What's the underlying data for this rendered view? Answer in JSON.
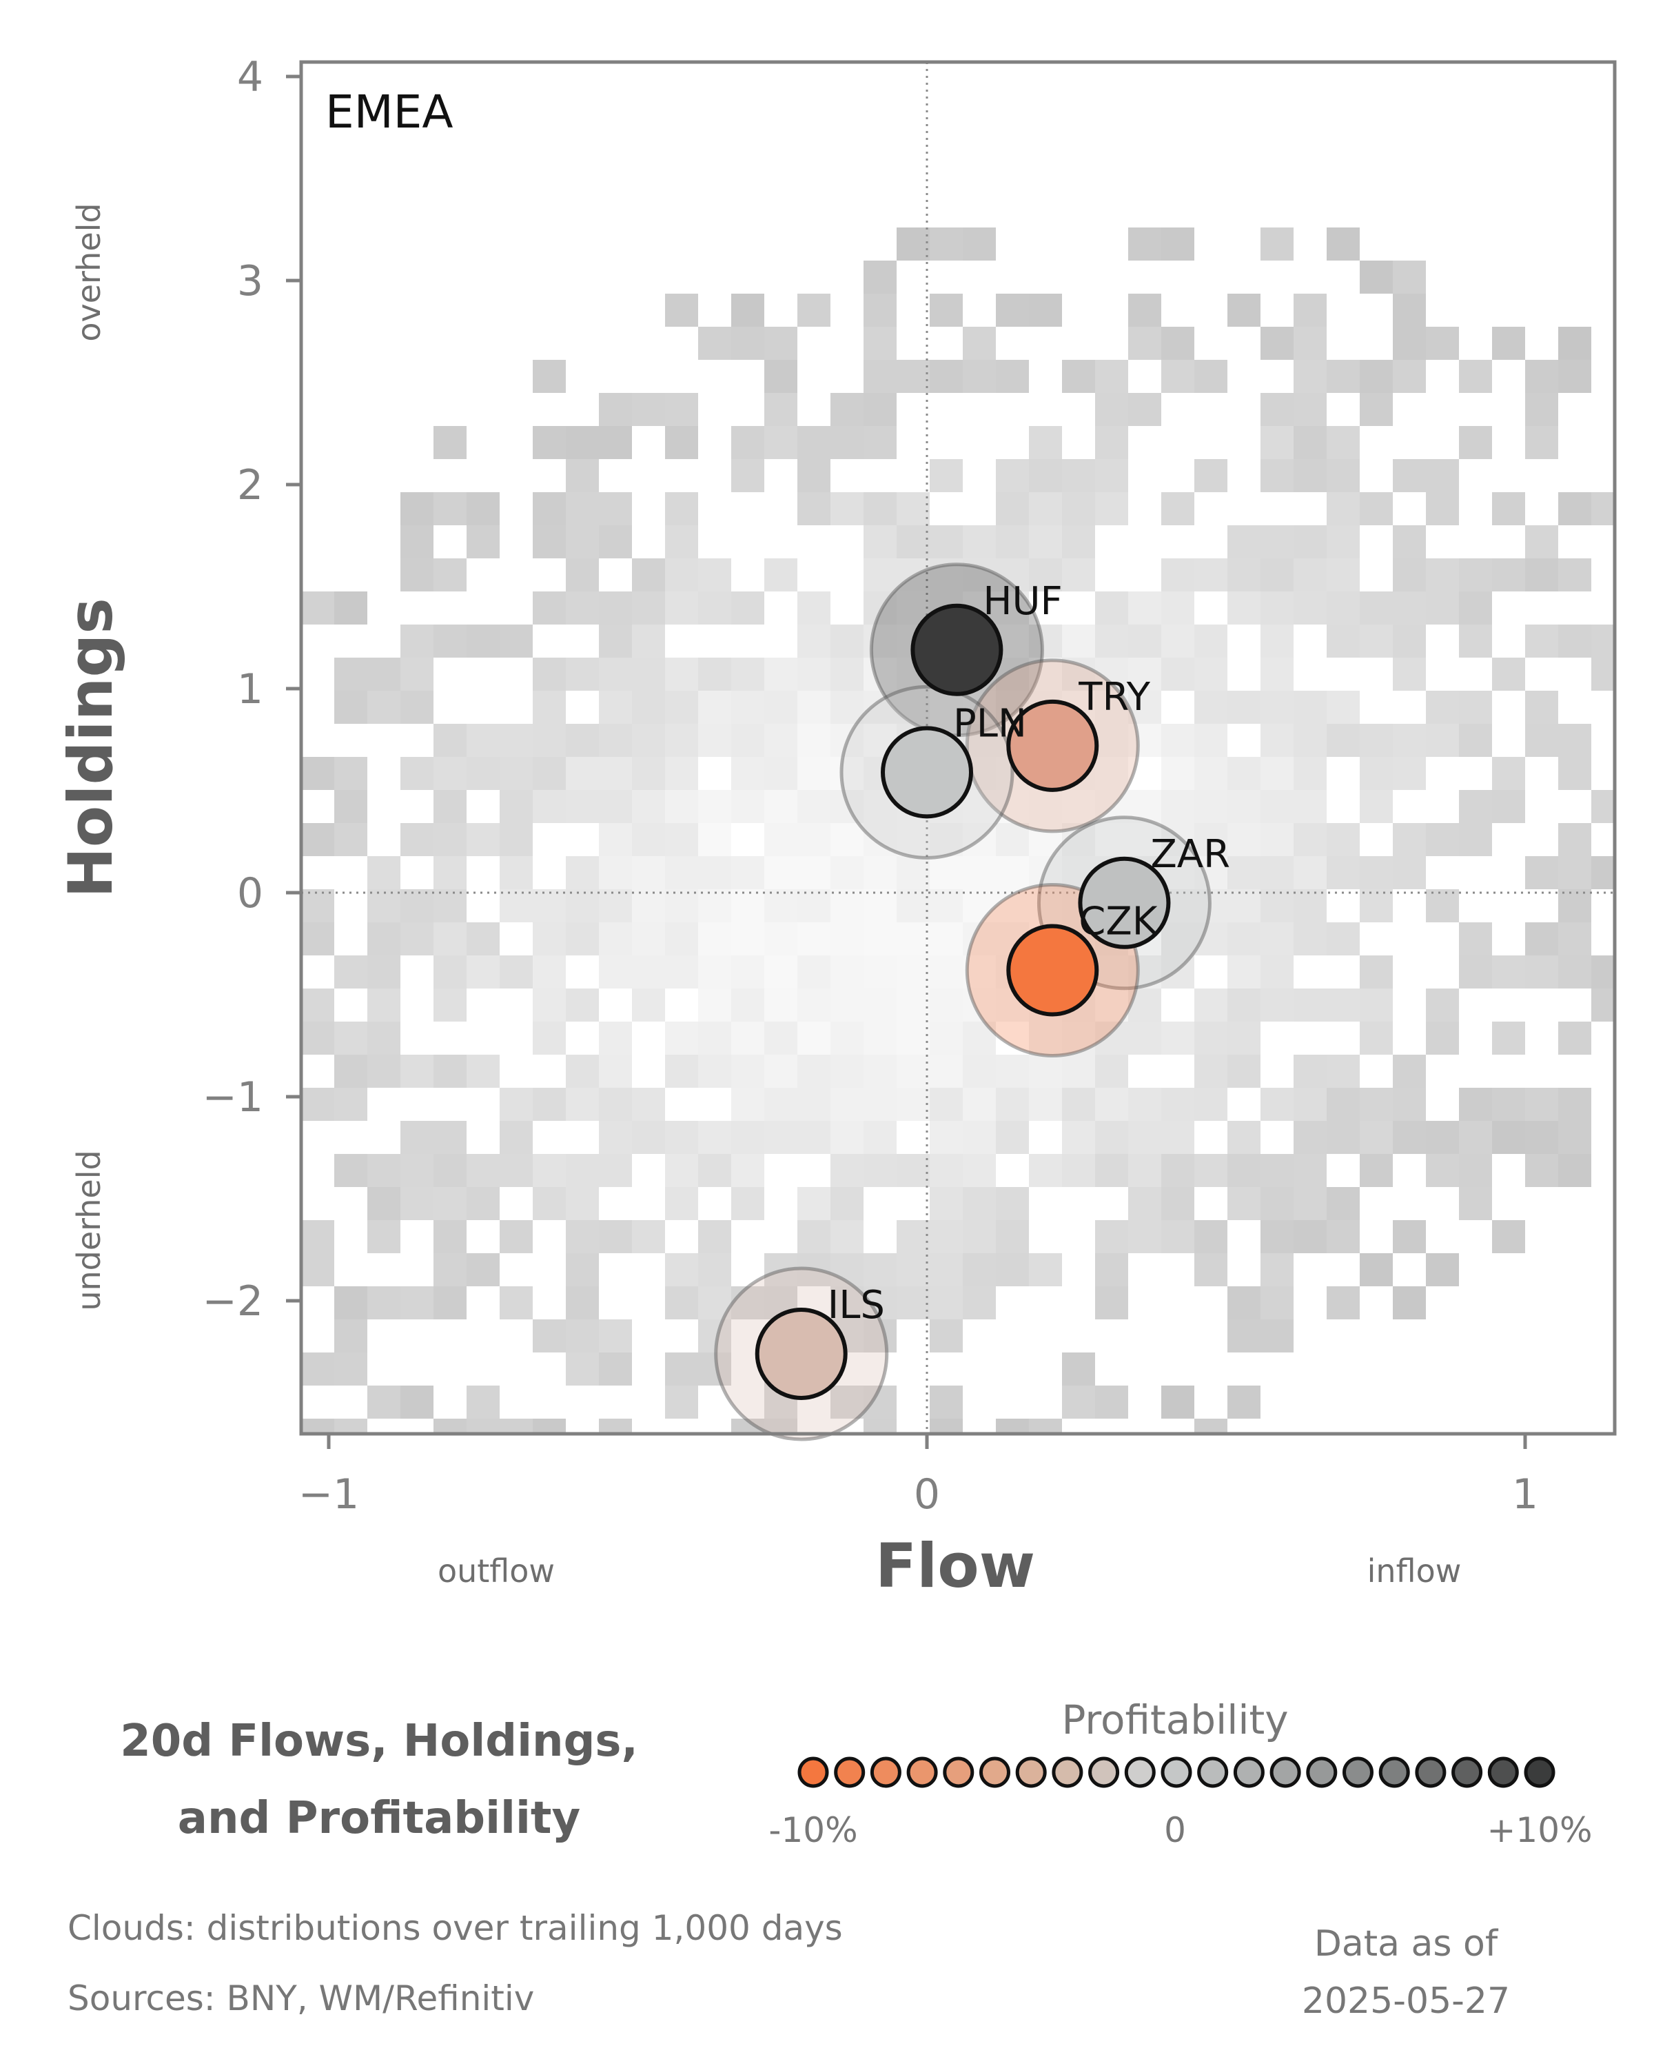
{
  "chart_data": {
    "type": "scatter",
    "panel_label": "EMEA",
    "xlabel": "Flow",
    "ylabel": "Holdings",
    "xlim": [
      -1.05,
      1.15
    ],
    "ylim": [
      -2.65,
      4.05
    ],
    "xticks": [
      -1,
      0,
      1
    ],
    "xtick_labels": [
      "−1",
      "0",
      "1"
    ],
    "yticks": [
      -2,
      -1,
      0,
      1,
      2,
      3,
      4
    ],
    "ytick_labels": [
      "−2",
      "−1",
      "0",
      "1",
      "2",
      "3",
      "4"
    ],
    "x_direction_labels": {
      "low": "outflow",
      "high": "inflow"
    },
    "y_direction_labels": {
      "low": "underheld",
      "high": "overheld"
    },
    "reference_lines": {
      "x": 0,
      "y": 0,
      "style": "dotted"
    },
    "grid": false,
    "points": [
      {
        "label": "HUF",
        "x": 0.05,
        "y": 1.19,
        "profitability": 10,
        "color": "#3a3a3a"
      },
      {
        "label": "TRY",
        "x": 0.21,
        "y": 0.72,
        "profitability": -4,
        "color": "#e0a08a"
      },
      {
        "label": "PLN",
        "x": 0.0,
        "y": 0.59,
        "profitability": 1,
        "color": "#c4c6c6"
      },
      {
        "label": "ZAR",
        "x": 0.33,
        "y": -0.05,
        "profitability": 2,
        "color": "#bfc1c1"
      },
      {
        "label": "CZK",
        "x": 0.21,
        "y": -0.38,
        "profitability": -10,
        "color": "#f4773f"
      },
      {
        "label": "ILS",
        "x": -0.21,
        "y": -2.26,
        "profitability": -1,
        "color": "#d8bcb0"
      }
    ],
    "cloud": {
      "description_field_omitted": true,
      "color": "#c8c8c8"
    },
    "legend": {
      "title": "Profitability",
      "tick_labels": [
        "-10%",
        "0",
        "+10%"
      ],
      "swatches": [
        "#f4773f",
        "#f1824f",
        "#ee8c5e",
        "#ea966d",
        "#e69f7c",
        "#e1a98b",
        "#dbb29b",
        "#d5bbab",
        "#d0c3bb",
        "#cfcecd",
        "#c5c7c7",
        "#babcbc",
        "#afb1b1",
        "#a3a5a5",
        "#979999",
        "#8a8c8c",
        "#7d7f7f",
        "#6f7070",
        "#5f6060",
        "#4e4f4f",
        "#3b3c3c"
      ]
    },
    "title": [
      "20d Flows, Holdings,",
      "and Profitability"
    ]
  },
  "footer": {
    "clouds_note": "Clouds:  distributions over trailing 1,000 days",
    "sources_note": "Sources:  BNY, WM/Refinitiv",
    "asof_label": "Data as of",
    "asof_date": "2025-05-27"
  }
}
